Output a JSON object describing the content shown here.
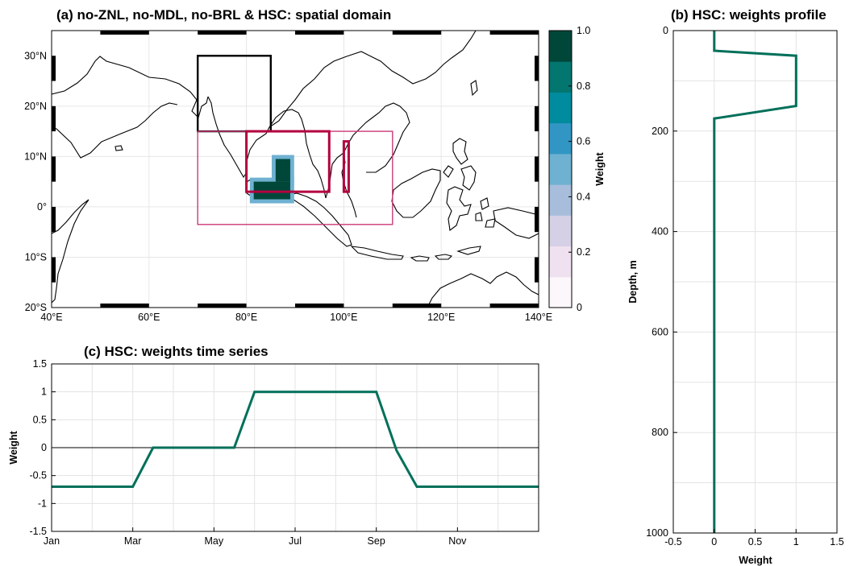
{
  "chart_data": [
    {
      "type": "heatmap",
      "title": "(a) no-ZNL, no-MDL, no-BRL & HSC: spatial domain",
      "xlim": [
        40,
        140
      ],
      "ylim": [
        -20,
        35
      ],
      "xticks": [
        40,
        60,
        80,
        100,
        120,
        140
      ],
      "xtick_labels": [
        "40°E",
        "60°E",
        "80°E",
        "100°E",
        "120°E",
        "140°E"
      ],
      "yticks": [
        -20,
        -10,
        0,
        10,
        20,
        30
      ],
      "ytick_labels": [
        "20°S",
        "10°S",
        "0°",
        "10°N",
        "20°N",
        "30°N"
      ],
      "colorbar": {
        "label": "Weight",
        "range": [
          0,
          1
        ],
        "ticks": [
          0,
          0.2,
          0.4,
          0.6,
          0.8,
          1.0
        ],
        "tick_labels": [
          "0",
          "0.2",
          "0.4",
          "0.6",
          "0.8",
          "1.0"
        ],
        "colors": [
          "#fcf7fb",
          "#efe1ef",
          "#d5d0e6",
          "#a7bddb",
          "#6fb1d1",
          "#3296c4",
          "#008b9e",
          "#03766f",
          "#00473a"
        ]
      },
      "weight_region": {
        "weight": 1.0,
        "cells": [
          {
            "lon": [
              81.5,
              89
            ],
            "lat": [
              1.5,
              5
            ]
          },
          {
            "lon": [
              86,
              89
            ],
            "lat": [
              5,
              9.5
            ]
          }
        ],
        "halo_weight": 0.45
      },
      "boxes": [
        {
          "lon": [
            70,
            85
          ],
          "lat": [
            15,
            30
          ],
          "color": "#000000"
        },
        {
          "lon": [
            70,
            110
          ],
          "lat": [
            -3.5,
            15
          ],
          "color": "#cc3a78"
        },
        {
          "lon": [
            80,
            97
          ],
          "lat": [
            3,
            15
          ],
          "color": "#b3003f"
        },
        {
          "lon": [
            100,
            101
          ],
          "lat": [
            3,
            13
          ],
          "color": "#b3003f"
        }
      ]
    },
    {
      "type": "line",
      "title": "(b) HSC: weights profile",
      "xlabel": "Weight",
      "ylabel": "Depth, m",
      "xlim": [
        -0.5,
        1.5
      ],
      "ylim": [
        0,
        1000
      ],
      "y_reversed": true,
      "xticks": [
        -0.5,
        0,
        0.5,
        1,
        1.5
      ],
      "yticks": [
        0,
        200,
        400,
        600,
        800,
        1000
      ],
      "series": [
        {
          "color": "#00705a",
          "x": [
            0,
            0,
            1,
            1,
            0,
            0
          ],
          "y": [
            0,
            40,
            50,
            150,
            175,
            1000
          ]
        }
      ]
    },
    {
      "type": "line",
      "title": "(c) HSC: weights time series",
      "ylabel": "Weight",
      "xlim": [
        0,
        12
      ],
      "ylim": [
        -1.5,
        1.5
      ],
      "categories": [
        "Jan",
        "Mar",
        "May",
        "Jul",
        "Sep",
        "Nov"
      ],
      "category_positions": [
        0,
        2,
        4,
        6,
        8,
        10
      ],
      "yticks": [
        -1.5,
        -1,
        -0.5,
        0,
        0.5,
        1,
        1.5
      ],
      "series": [
        {
          "color": "#00705a",
          "x": [
            0,
            2,
            2.5,
            4.5,
            5,
            8,
            8.5,
            9,
            12
          ],
          "y": [
            -0.7,
            -0.7,
            0,
            0,
            1,
            1,
            -0.05,
            -0.7,
            -0.7
          ]
        }
      ]
    }
  ]
}
